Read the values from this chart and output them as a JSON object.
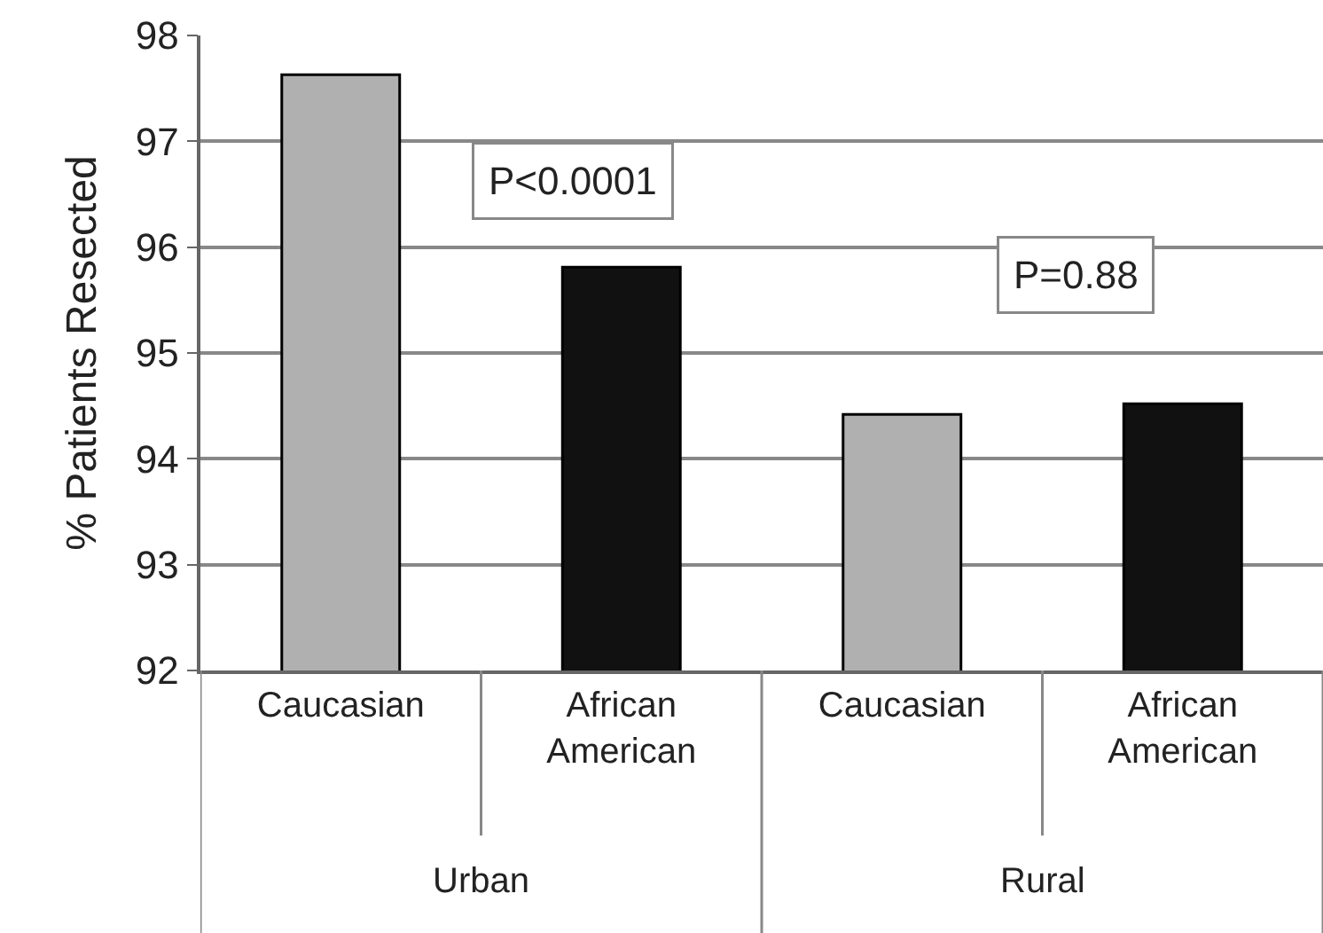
{
  "chart_data": {
    "type": "bar",
    "ylabel": "% Patients Resected",
    "categories": [
      "Caucasian",
      "African American",
      "Caucasian",
      "African American"
    ],
    "values": [
      97.63,
      95.81,
      94.42,
      94.52
    ],
    "colors": [
      "#b0b0b0",
      "#111111",
      "#b0b0b0",
      "#111111"
    ],
    "ylim": [
      92,
      98
    ],
    "yticks": [
      92,
      93,
      94,
      95,
      96,
      97,
      98
    ],
    "grid": "y",
    "legend": false,
    "annotations": [
      "P<0.0001",
      "P=0.88",
      "Urban",
      "Rural"
    ]
  }
}
